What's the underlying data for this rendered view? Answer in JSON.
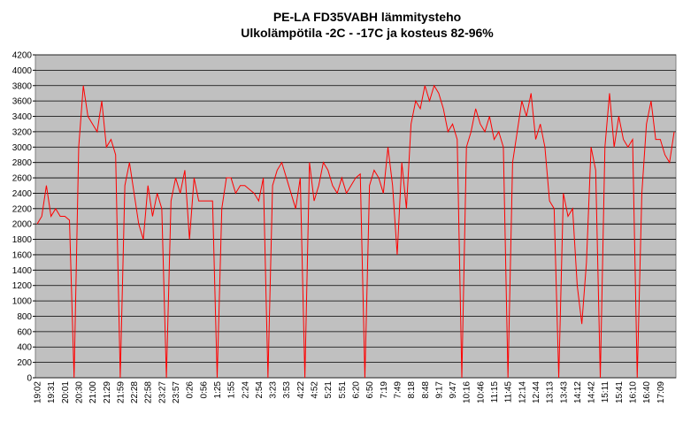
{
  "chart_data": {
    "type": "line",
    "title": "PE-LA FD35VABH lämmitysteho",
    "subtitle": "Ulkolämpötila  -2C - -17C ja kosteus 82-96%",
    "categories": [
      "19:02",
      null,
      null,
      "19:31",
      null,
      null,
      "20:01",
      null,
      null,
      "20:30",
      null,
      null,
      "21:00",
      null,
      null,
      "21:29",
      null,
      null,
      "21:59",
      null,
      null,
      "22:28",
      null,
      null,
      "22:58",
      null,
      null,
      "23:27",
      null,
      null,
      "23:57",
      null,
      null,
      "0:26",
      null,
      null,
      "0:56",
      null,
      null,
      "1:25",
      null,
      null,
      "1:55",
      null,
      null,
      "2:24",
      null,
      null,
      "2:54",
      null,
      null,
      "3:23",
      null,
      null,
      "3:53",
      null,
      null,
      "4:22",
      null,
      null,
      "4:52",
      null,
      null,
      "5:21",
      null,
      null,
      "5:51",
      null,
      null,
      "6:20",
      null,
      null,
      "6:50",
      null,
      null,
      "7:19",
      null,
      null,
      "7:49",
      null,
      null,
      "8:18",
      null,
      null,
      "8:48",
      null,
      null,
      "9:17",
      null,
      null,
      "9:47",
      null,
      null,
      "10:16",
      null,
      null,
      "10:46",
      null,
      null,
      "11:15",
      null,
      null,
      "11:45",
      null,
      null,
      "12:14",
      null,
      null,
      "12:44",
      null,
      null,
      "13:13",
      null,
      null,
      "13:43",
      null,
      null,
      "14:12",
      null,
      null,
      "14:42",
      null,
      null,
      "15:11",
      null,
      null,
      "15:41",
      null,
      null,
      "16:10",
      null,
      null,
      "16:40",
      null,
      null,
      "17:09",
      null,
      null,
      null
    ],
    "series": [
      {
        "name": "lämmitysteho",
        "color": "#ff0000",
        "values": [
          2000,
          2100,
          2500,
          2100,
          2200,
          2100,
          2100,
          2050,
          0,
          3000,
          3800,
          3400,
          3300,
          3200,
          3600,
          3000,
          3100,
          2900,
          0,
          2500,
          2800,
          2400,
          2000,
          1800,
          2500,
          2100,
          2400,
          2200,
          0,
          2300,
          2600,
          2400,
          2700,
          1800,
          2600,
          2300,
          2300,
          2300,
          2300,
          0,
          2200,
          2600,
          2600,
          2400,
          2500,
          2500,
          2450,
          2400,
          2300,
          2600,
          0,
          2500,
          2700,
          2800,
          2600,
          2400,
          2200,
          2600,
          0,
          2800,
          2300,
          2500,
          2800,
          2700,
          2500,
          2400,
          2600,
          2400,
          2500,
          2600,
          2650,
          0,
          2500,
          2700,
          2600,
          2400,
          3000,
          2500,
          1600,
          2800,
          2200,
          3300,
          3600,
          3500,
          3800,
          3600,
          3800,
          3700,
          3500,
          3200,
          3300,
          3100,
          0,
          3000,
          3200,
          3500,
          3300,
          3200,
          3400,
          3100,
          3200,
          3000,
          0,
          2800,
          3200,
          3600,
          3400,
          3700,
          3100,
          3300,
          3000,
          2300,
          2200,
          0,
          2400,
          2100,
          2200,
          1200,
          700,
          1500,
          3000,
          2700,
          0,
          3000,
          3700,
          3000,
          3400,
          3100,
          3000,
          3100,
          0,
          2400,
          3300,
          3600,
          3100,
          3100,
          2900,
          2800,
          3200
        ]
      }
    ],
    "ylim": [
      0,
      4200
    ],
    "yticks": [
      0,
      200,
      400,
      600,
      800,
      1000,
      1200,
      1400,
      1600,
      1800,
      2000,
      2200,
      2400,
      2600,
      2800,
      3000,
      3200,
      3400,
      3600,
      3800,
      4000,
      4200
    ],
    "grid": true
  }
}
